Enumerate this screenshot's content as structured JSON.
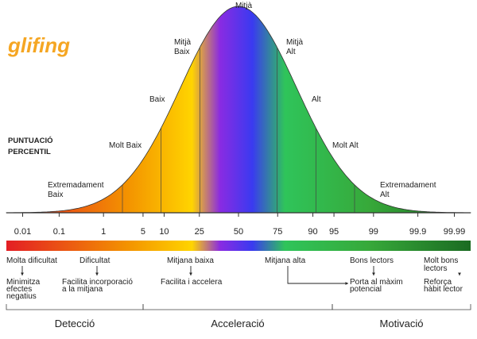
{
  "logo": "glifing",
  "axis_title": [
    "PUNTUACIÓ",
    "PERCENTIL"
  ],
  "levels": [
    [
      "Extremadament",
      "Baix"
    ],
    [
      "Molt Baix"
    ],
    [
      "Baix"
    ],
    [
      "Mitjà",
      "Baix"
    ],
    [
      "Mitjà"
    ],
    [
      "Mitjà",
      "Alt"
    ],
    [
      "Alt"
    ],
    [
      "Molt Alt"
    ],
    [
      "Extremadament",
      "Alt"
    ]
  ],
  "percentiles": [
    0.01,
    0.1,
    1,
    5,
    10,
    25,
    50,
    75,
    90,
    95,
    99,
    99.9,
    99.99
  ],
  "profiles": [
    {
      "label": [
        "Molta dificultat"
      ],
      "effect": [
        "Minimitza",
        "efectes",
        "negatius"
      ]
    },
    {
      "label": [
        "Dificultat"
      ],
      "effect": [
        "Facilita incorporació",
        "a la mitjana"
      ]
    },
    {
      "label": [
        "Mitjana baixa"
      ],
      "effect": [
        "Facilita i accelera"
      ]
    },
    {
      "label": [
        "Mitjana alta"
      ]
    },
    {
      "label": [
        "Bons lectors"
      ],
      "effect": [
        "Porta al màxim",
        "potencial"
      ]
    },
    {
      "label": [
        "Molt bons",
        "lectors"
      ],
      "effect": [
        "Reforça",
        "hàbit lector"
      ]
    }
  ],
  "stages": [
    "Detecció",
    "Acceleració",
    "Motivació"
  ]
}
